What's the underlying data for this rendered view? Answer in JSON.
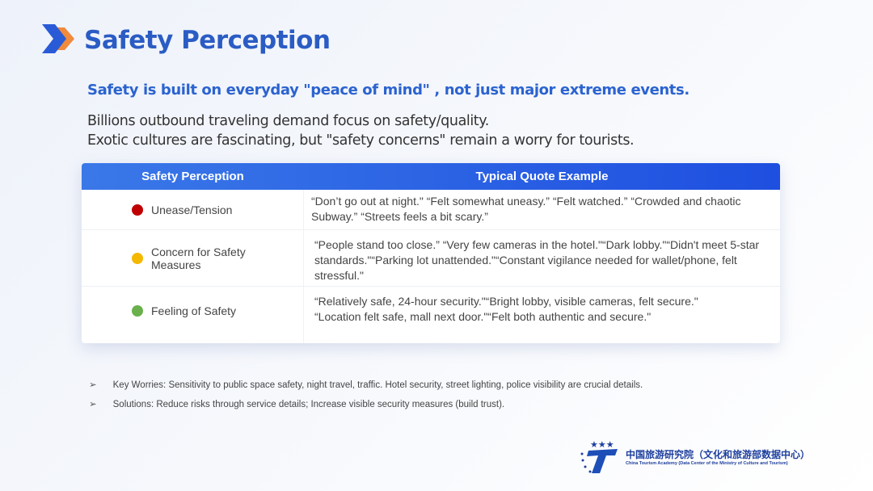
{
  "header": {
    "title": "Safety Perception",
    "logo_icon": "chevron-right-icon"
  },
  "subtitle": "Safety is built on everyday \"peace of mind\" , not just major extreme events.",
  "body_lines": [
    "Billions outbound traveling demand focus on safety/quality.",
    "Exotic cultures are fascinating, but \"safety concerns\" remain a worry for tourists."
  ],
  "table": {
    "headers": [
      "Safety Perception",
      "Typical Quote Example"
    ],
    "rows": [
      {
        "label": "Unease/Tension",
        "color": "#c00000",
        "quote": "“Don’t go out at night.\" “Felt somewhat uneasy.” “Felt watched.” “Crowded and chaotic Subway.” “Streets feels a bit scary.”"
      },
      {
        "label": "Concern for Safety Measures",
        "color": "#f5b800",
        "quote": "“People stand too close.” “Very few cameras in the hotel.\"“Dark lobby.\"“Didn't meet 5-star standards.\"“Parking lot unattended.\"“Constant vigilance needed for wallet/phone, felt stressful.\""
      },
      {
        "label": "Feeling of Safety",
        "color": "#6ab04c",
        "quote": "“Relatively safe, 24-hour security.\"“Bright lobby, visible cameras, felt secure.\" “Location felt safe, mall next door.\"“Felt both authentic and secure.\""
      }
    ]
  },
  "bullets": [
    "Key Worries: Sensitivity to public space safety, night travel, traffic. Hotel security, street lighting, police visibility are crucial details.",
    "Solutions: Reduce risks through service details; Increase visible security measures (build trust)."
  ],
  "bullet_marker": "➢",
  "footer": {
    "org_cn": "中国旅游研究院（文化和旅游部数据中心）",
    "org_en": "China Tourism Academy (Data Center of the Ministry of Culture and Tourism)"
  }
}
